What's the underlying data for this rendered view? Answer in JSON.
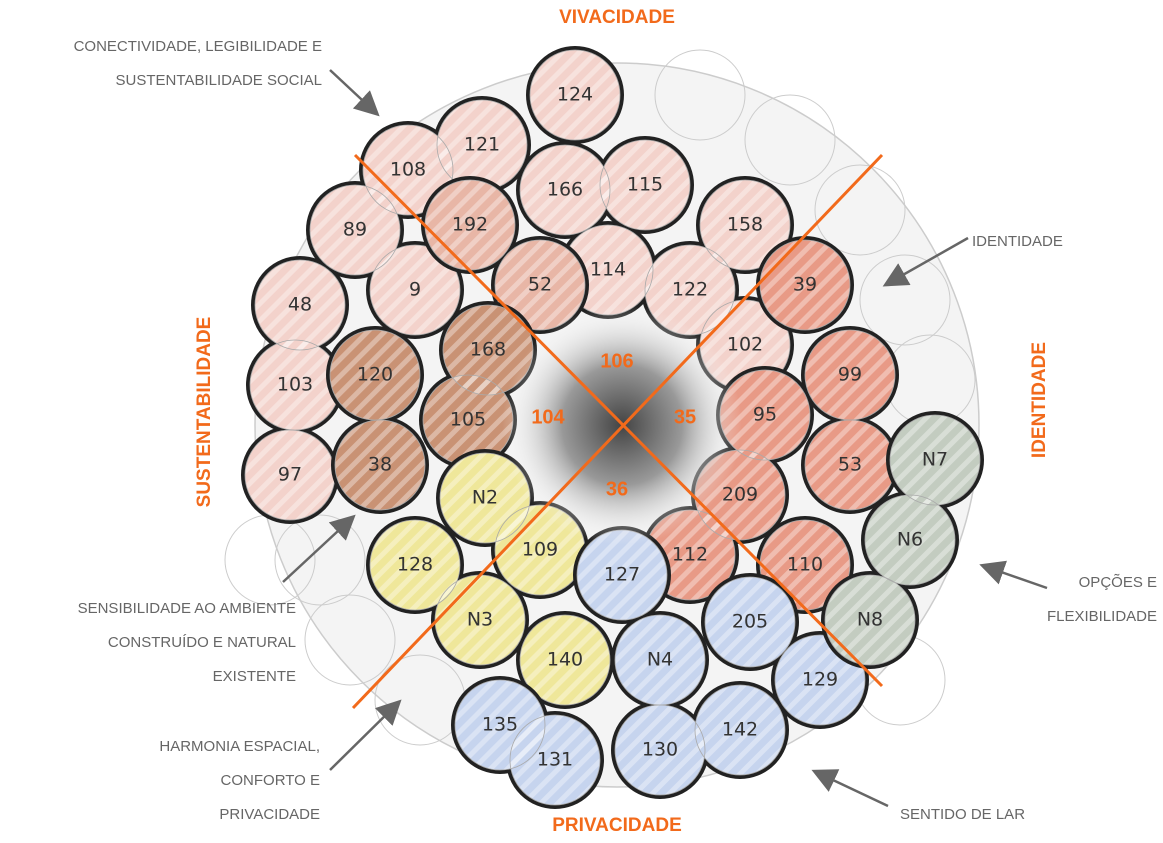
{
  "axes": {
    "top": "VIVACIDADE",
    "bottom": "PRIVACIDADE",
    "left": "SUSTENTABILIDADE",
    "right": "IDENTIDADE"
  },
  "center": [
    106,
    104,
    35,
    36
  ],
  "annotations": [
    {
      "lines": [
        "CONECTIVIDADE, LEGIBILIDADE E",
        "SUSTENTABILIDADE SOCIAL"
      ]
    },
    {
      "lines": [
        "IDENTIDADE"
      ]
    },
    {
      "lines": [
        "SENSIBILIDADE AO AMBIENTE",
        "CONSTRUÍDO E NATURAL",
        "EXISTENTE"
      ]
    },
    {
      "lines": [
        "OPÇÕES E",
        "FLEXIBILIDADE"
      ]
    },
    {
      "lines": [
        "HARMONIA ESPACIAL,",
        "CONFORTO E",
        "PRIVACIDADE"
      ]
    },
    {
      "lines": [
        "SENTIDO DE LAR"
      ]
    }
  ],
  "nodes": [
    "108",
    "121",
    "124",
    "166",
    "115",
    "158",
    "89",
    "192",
    "52",
    "114",
    "122",
    "39",
    "48",
    "9",
    "168",
    "102",
    "99",
    "103",
    "120",
    "105",
    "95",
    "53",
    "N7",
    "97",
    "38",
    "N2",
    "209",
    "N6",
    "128",
    "109",
    "127",
    "112",
    "110",
    "N3",
    "205",
    "N8",
    "140",
    "N4",
    "129",
    "135",
    "131",
    "130",
    "142"
  ]
}
